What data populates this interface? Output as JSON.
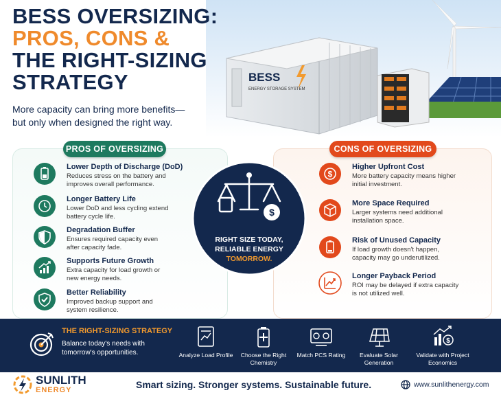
{
  "title": {
    "line1": "BESS OVERSIZING:",
    "line2": "PROS, CONS &",
    "line3": "THE RIGHT-SIZING STRATEGY"
  },
  "subtitle": "More capacity can bring more benefits—but only when designed the right way.",
  "illustration": {
    "container_label": "BESS",
    "container_sublabel": "ENERGY STORAGE SYSTEM"
  },
  "pros": {
    "heading": "PROS OF OVERSIZING",
    "items": [
      {
        "title": "Lower Depth of Discharge (DoD)",
        "description": "Reduces stress on the battery and improves overall performance."
      },
      {
        "title": "Longer Battery Life",
        "description": "Lower DoD and less cycling extend battery cycle life."
      },
      {
        "title": "Degradation Buffer",
        "description": "Ensures required capacity even after capacity fade."
      },
      {
        "title": "Supports Future Growth",
        "description": "Extra capacity for load growth or new energy needs."
      },
      {
        "title": "Better Reliability",
        "description": "Improved backup support and system resilience."
      }
    ]
  },
  "cons": {
    "heading": "CONS OF OVERSIZING",
    "items": [
      {
        "title": "Higher Upfront Cost",
        "description": "More battery capacity means higher initial investment."
      },
      {
        "title": "More Space Required",
        "description": "Larger systems need additional installation space."
      },
      {
        "title": "Risk of Unused Capacity",
        "description": "If load growth doesn't happen, capacity may go underutilized."
      },
      {
        "title": "Longer Payback Period",
        "description": "ROI may be delayed if extra capacity is not utilized well."
      }
    ]
  },
  "center": {
    "line1": "RIGHT SIZE TODAY, RELIABLE ENERGY",
    "line2": "TOMORROW."
  },
  "strategy": {
    "title": "THE RIGHT-SIZING STRATEGY",
    "description": "Balance today's needs with tomorrow's opportunities.",
    "steps": [
      "Analyze Load Profile",
      "Choose the Right Chemistry",
      "Match PCS Rating",
      "Evaluate Solar Generation",
      "Validate with Project Economics"
    ]
  },
  "footer": {
    "brand": "SUNLITH",
    "brand_sub": "ENERGY",
    "tagline": "Smart sizing. Stronger systems. Sustainable future.",
    "website": "www.sunlithenergy.com"
  }
}
